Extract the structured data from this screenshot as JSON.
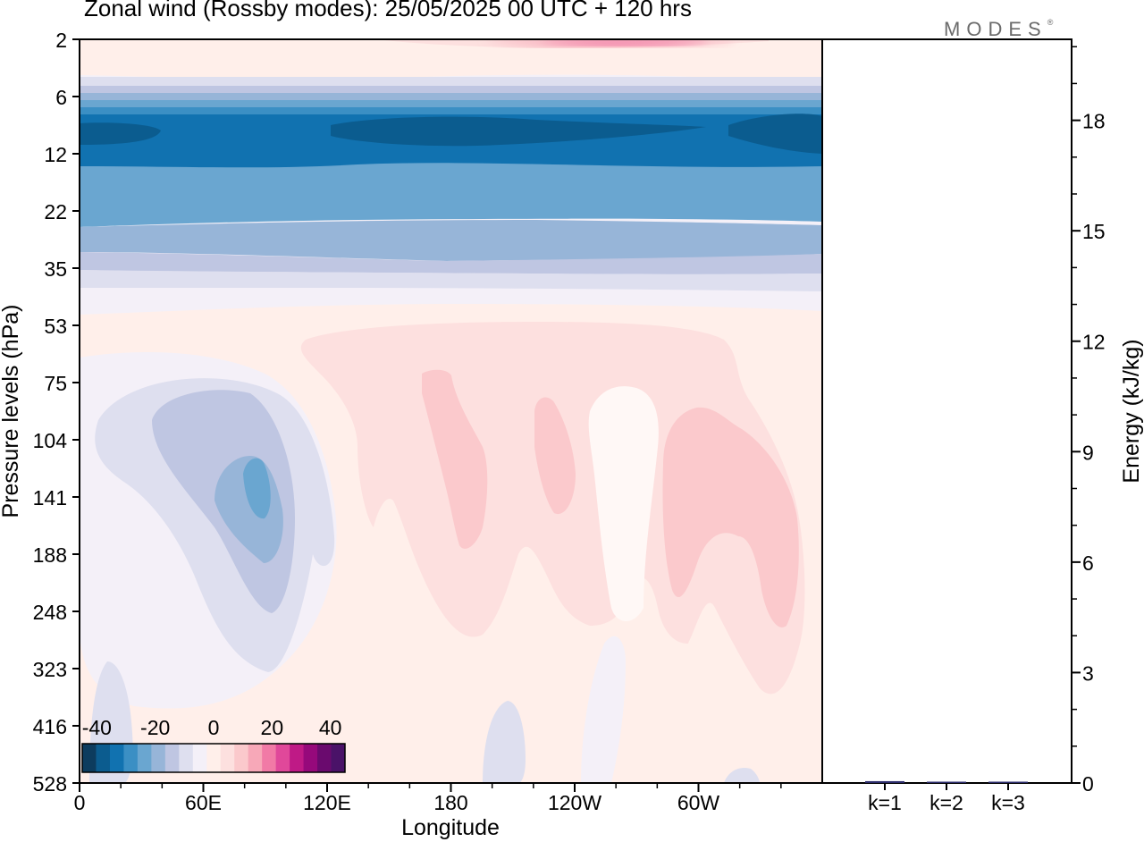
{
  "title": "Zonal wind (Rossby modes):  25/05/2025  00 UTC  + 120 hrs",
  "brand": "MODES",
  "brand_mark": "®",
  "chart_data": [
    {
      "type": "heatmap",
      "xlabel": "Longitude",
      "ylabel": "Pressure levels (hPa)",
      "x_ticks": [
        "0",
        "60E",
        "120E",
        "180",
        "120W",
        "60W"
      ],
      "x_tick_values_deg": [
        0,
        60,
        120,
        180,
        240,
        300
      ],
      "xlim_deg": [
        0,
        360
      ],
      "y_ticks": [
        "2",
        "6",
        "12",
        "22",
        "35",
        "53",
        "75",
        "104",
        "141",
        "188",
        "248",
        "323",
        "416",
        "528"
      ],
      "y_scale": "model levels (top 2 hPa, bottom 528 hPa)",
      "colorbar": {
        "ticks": [
          "-40",
          "-20",
          "0",
          "20",
          "40"
        ],
        "range": [
          -45,
          45
        ],
        "step": 5,
        "colors": [
          "#0d3c5e",
          "#0b5c8f",
          "#1172b0",
          "#3b8fc4",
          "#6aa6d0",
          "#97b5d8",
          "#bfc6e2",
          "#dedfef",
          "#f4f0f8",
          "#ffefea",
          "#fde0df",
          "#fbc9cc",
          "#f7a8b8",
          "#f17aa6",
          "#e0489a",
          "#bf1a86",
          "#96097b",
          "#6a0a6e",
          "#4a1268"
        ]
      },
      "features": [
        {
          "description": "strong easterlies",
          "levels_hPa": [
            6,
            22
          ],
          "value_range": [
            -35,
            -15
          ]
        },
        {
          "description": "westerlies aloft",
          "levels_hPa": [
            2,
            4
          ],
          "value_range": [
            5,
            20
          ],
          "max_near_lon_deg": 200
        },
        {
          "description": "easterly cell",
          "lon_deg": [
            10,
            100
          ],
          "levels_hPa": [
            80,
            300
          ],
          "min_value": -20,
          "center_lon_deg": 85,
          "center_hPa": 141
        },
        {
          "description": "westerly tongues",
          "lon_deg": [
            110,
            345
          ],
          "levels_hPa": [
            60,
            350
          ],
          "max_value": 10
        }
      ]
    },
    {
      "type": "bar",
      "categories": [
        "k=1",
        "k=2",
        "k=3"
      ],
      "values": [
        0.05,
        0.03,
        0.03
      ],
      "ylabel": "Energy (kJ/kg)",
      "y_ticks": [
        "0",
        "3",
        "6",
        "9",
        "12",
        "15",
        "18"
      ],
      "ylim": [
        0,
        20.2
      ],
      "bar_color": "#2b2b6b"
    }
  ]
}
